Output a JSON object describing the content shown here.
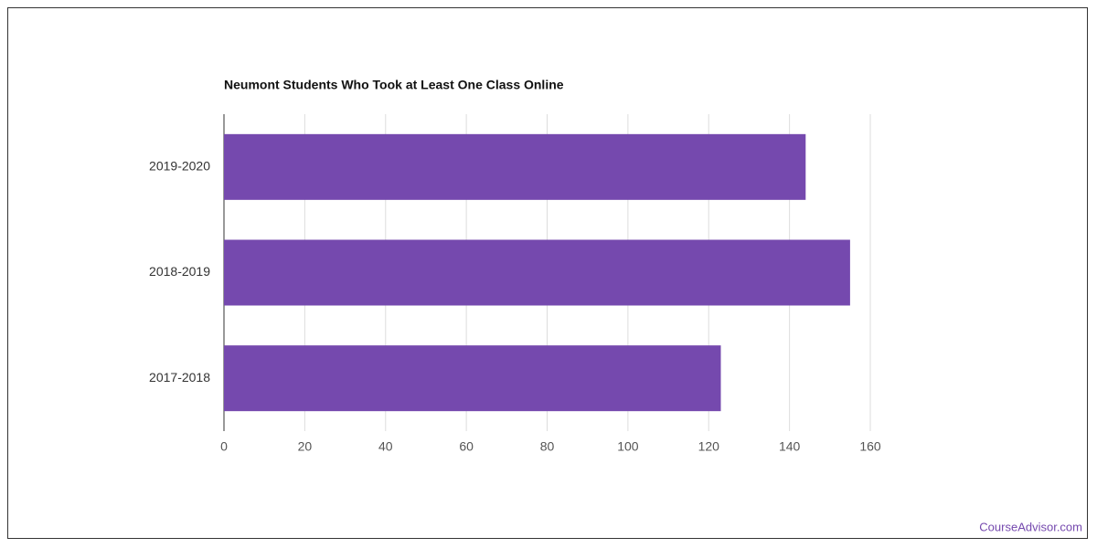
{
  "chart_data": {
    "type": "hbar",
    "title": "Neumont Students Who Took at Least One Class Online",
    "categories": [
      "2019-2020",
      "2018-2019",
      "2017-2018"
    ],
    "values": [
      144,
      155,
      123
    ],
    "color": "#7549ae",
    "xlim": [
      0,
      160
    ],
    "xticks": [
      0,
      20,
      40,
      60,
      80,
      100,
      120,
      140,
      160
    ],
    "grid": true
  },
  "watermark": "CourseAdvisor.com"
}
